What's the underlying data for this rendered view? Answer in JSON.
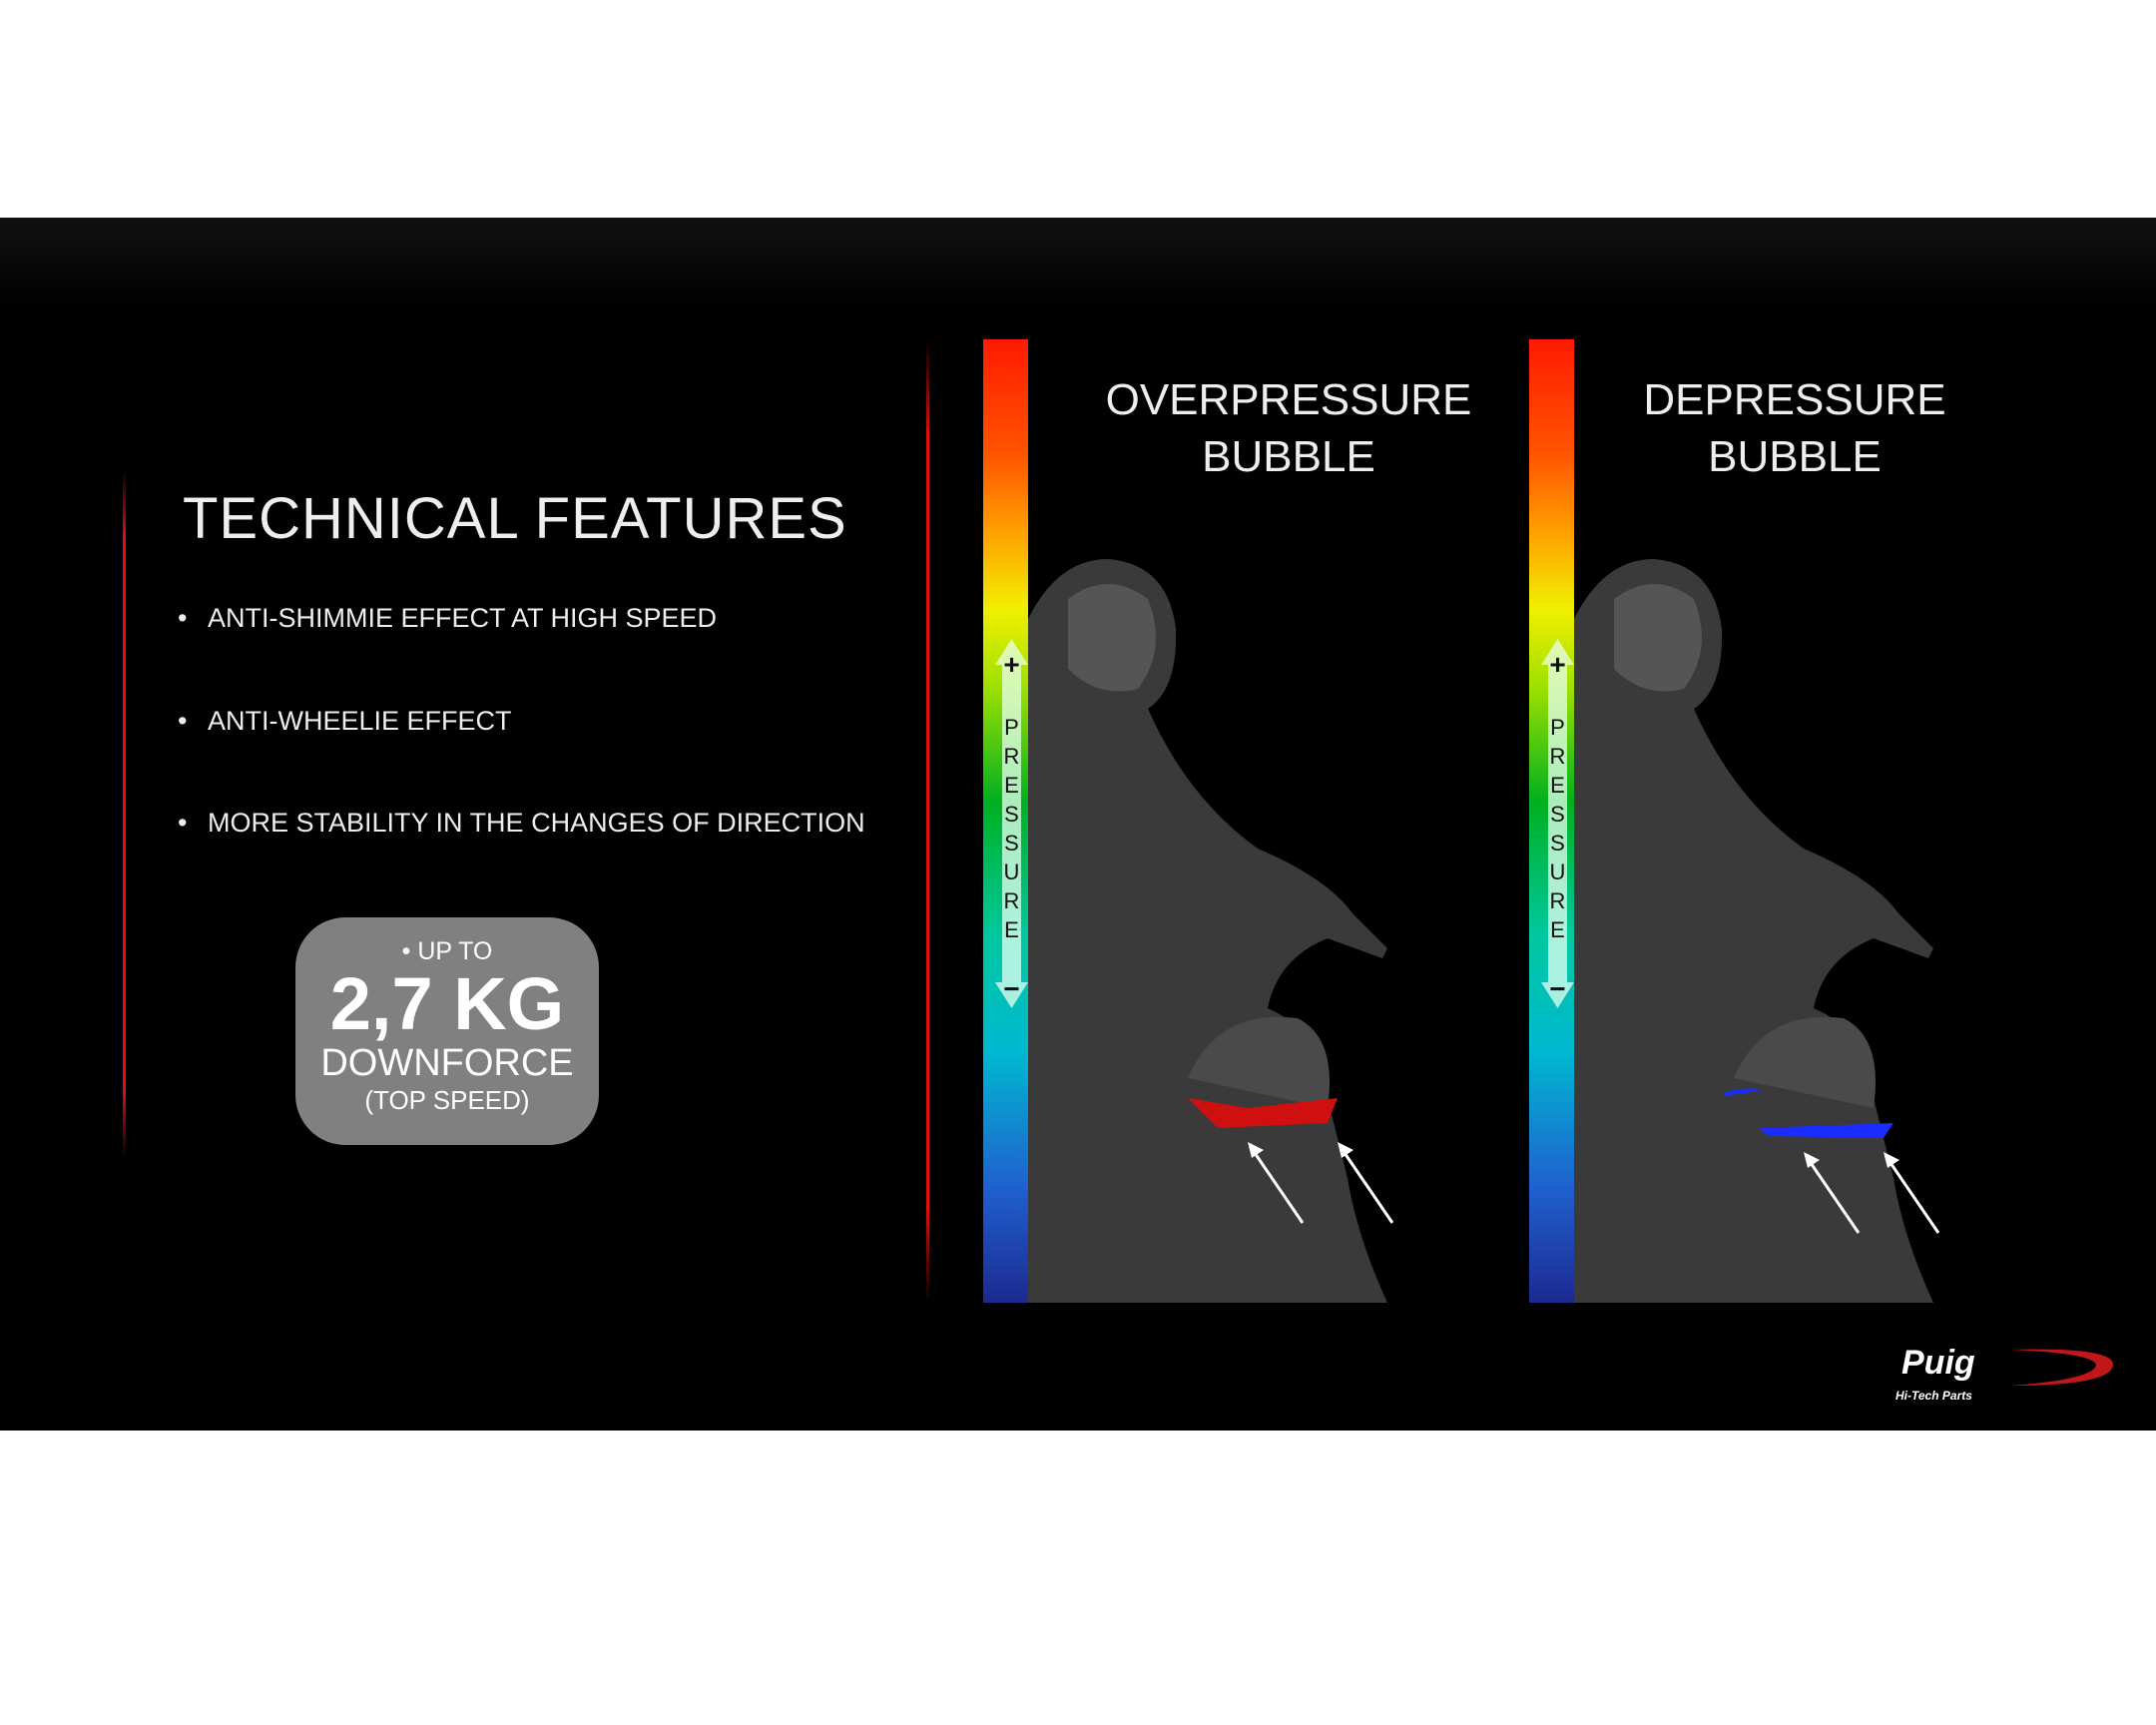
{
  "slide": {
    "title": "TECHNICAL FEATURES",
    "bullets": [
      "ANTI-SHIMMIE EFFECT AT HIGH SPEED",
      "ANTI-WHEELIE EFFECT",
      "MORE STABILITY IN THE CHANGES OF DIRECTION"
    ],
    "highlight": {
      "prefix": "• UP TO",
      "value": "2,7 KG",
      "label": "DOWNFORCE",
      "note": "(TOP SPEED)"
    },
    "panels": [
      {
        "title_line1": "OVERPRESSURE",
        "title_line2": "BUBBLE",
        "highlight_color": "#d01010"
      },
      {
        "title_line1": "DEPRESSURE",
        "title_line2": "BUBBLE",
        "highlight_color": "#1a2cff"
      }
    ],
    "scale": {
      "plus": "+",
      "minus": "−",
      "letters": [
        "P",
        "R",
        "E",
        "S",
        "S",
        "U",
        "R",
        "E"
      ]
    },
    "logo": {
      "brand": "Puig",
      "tagline": "Hi-Tech Parts",
      "accent": "#c01818"
    }
  }
}
